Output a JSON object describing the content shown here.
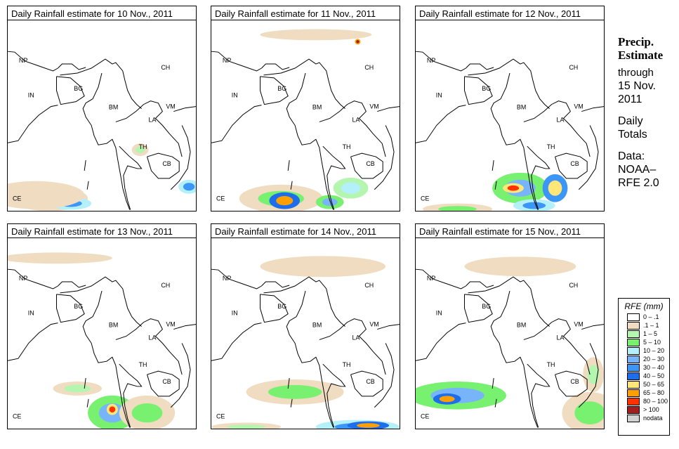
{
  "panels": [
    {
      "title": "Daily Rainfall estimate for  10 Nov., 2011"
    },
    {
      "title": "Daily Rainfall estimate for  11 Nov., 2011"
    },
    {
      "title": "Daily Rainfall estimate for  12 Nov., 2011"
    },
    {
      "title": "Daily Rainfall estimate for  13 Nov., 2011"
    },
    {
      "title": "Daily Rainfall estimate for  14 Nov., 2011"
    },
    {
      "title": "Daily Rainfall estimate for  15 Nov., 2011"
    }
  ],
  "map_labels": [
    "NP",
    "IN",
    "BG",
    "BM",
    "CH",
    "VM",
    "LA",
    "TH",
    "CB",
    "CE"
  ],
  "side": {
    "line1": "Precip.",
    "line2": "Estimate",
    "line3": "through",
    "line4": "15 Nov.",
    "line5": "2011",
    "line6": "Daily",
    "line7": "Totals",
    "line8": "Data:",
    "line9": "NOAA–",
    "line10": "RFE 2.0"
  },
  "legend": {
    "title": "RFE (mm)",
    "items": [
      {
        "label": "0 – .1",
        "color": "#ffffff"
      },
      {
        "label": ".1 – 1",
        "color": "#f0dcc0"
      },
      {
        "label": "1 – 5",
        "color": "#b4f5b0"
      },
      {
        "label": "5 – 10",
        "color": "#78f070"
      },
      {
        "label": "10 – 20",
        "color": "#b4f0fa"
      },
      {
        "label": "20 – 30",
        "color": "#78b4fa"
      },
      {
        "label": "30 – 40",
        "color": "#3c96f5"
      },
      {
        "label": "40 – 50",
        "color": "#1e6eeb"
      },
      {
        "label": "50 – 65",
        "color": "#ffe678"
      },
      {
        "label": "65 – 80",
        "color": "#ffa000"
      },
      {
        "label": "80 – 100",
        "color": "#ff3200"
      },
      {
        "label": "> 100",
        "color": "#a01e1e"
      },
      {
        "label": "nodata",
        "color": "#d2d2d2"
      }
    ]
  }
}
